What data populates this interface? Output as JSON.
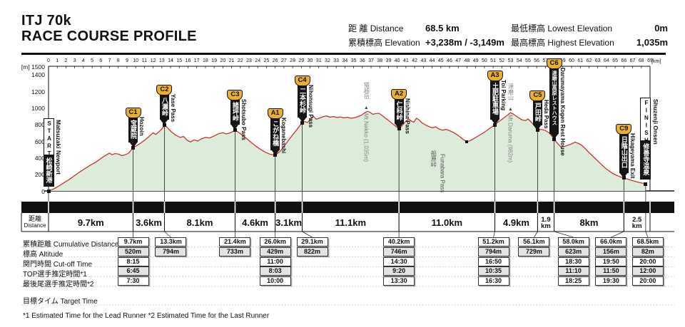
{
  "title": {
    "line1": "ITJ 70k",
    "line2": "RACE COURSE PROFILE"
  },
  "header_stats": [
    {
      "jp": "距 離",
      "en": "Distance",
      "value": "68.5 km"
    },
    {
      "jp": "累積標高",
      "en": "Elevation",
      "value": "+3,238m / -3,149m"
    },
    {
      "jp": "最低標高",
      "en": "Lowest Elevation",
      "value": "0m"
    },
    {
      "jp": "最高標高",
      "en": "Highest Elevation",
      "value": "1,035m"
    }
  ],
  "chart_data": {
    "type": "area",
    "title": "ITJ 70k Race Course Profile",
    "xlabel": "[km]",
    "ylabel": "[m]",
    "xlim": [
      0,
      69
    ],
    "ylim": [
      0,
      1500
    ],
    "y_ticks": [
      0,
      200,
      400,
      600,
      800,
      1000,
      1200,
      1400,
      1500
    ],
    "x_tick_step": 1,
    "grid": false,
    "line_color": "#c2392f",
    "fill_color": "#dcebda",
    "flag_gold": "#e9af2e",
    "profile": [
      [
        0,
        0
      ],
      [
        0.6,
        25
      ],
      [
        1.2,
        60
      ],
      [
        1.8,
        100
      ],
      [
        2.4,
        140
      ],
      [
        3,
        185
      ],
      [
        3.6,
        230
      ],
      [
        4.2,
        270
      ],
      [
        4.8,
        310
      ],
      [
        5.4,
        345
      ],
      [
        6,
        390
      ],
      [
        6.5,
        425
      ],
      [
        7,
        455
      ],
      [
        7.3,
        435
      ],
      [
        7.6,
        450
      ],
      [
        8,
        445
      ],
      [
        8.4,
        425
      ],
      [
        8.8,
        435
      ],
      [
        9.2,
        455
      ],
      [
        9.7,
        520
      ],
      [
        10.2,
        550
      ],
      [
        10.7,
        585
      ],
      [
        11.2,
        625
      ],
      [
        11.7,
        670
      ],
      [
        12,
        700
      ],
      [
        12.3,
        680
      ],
      [
        12.6,
        705
      ],
      [
        13,
        745
      ],
      [
        13.3,
        794
      ],
      [
        13.7,
        755
      ],
      [
        14.1,
        710
      ],
      [
        14.6,
        670
      ],
      [
        15.1,
        645
      ],
      [
        15.5,
        655
      ],
      [
        15.9,
        610
      ],
      [
        16.3,
        590
      ],
      [
        16.7,
        615
      ],
      [
        17.1,
        600
      ],
      [
        17.5,
        625
      ],
      [
        18,
        645
      ],
      [
        18.5,
        638
      ],
      [
        19,
        662
      ],
      [
        19.5,
        688
      ],
      [
        20,
        700
      ],
      [
        20.4,
        686
      ],
      [
        20.9,
        700
      ],
      [
        21.4,
        733
      ],
      [
        21.9,
        697
      ],
      [
        22.4,
        660
      ],
      [
        22.9,
        615
      ],
      [
        23.4,
        570
      ],
      [
        23.9,
        530
      ],
      [
        24.4,
        495
      ],
      [
        24.9,
        465
      ],
      [
        25.4,
        442
      ],
      [
        26,
        429
      ],
      [
        26.5,
        470
      ],
      [
        27,
        535
      ],
      [
        27.5,
        605
      ],
      [
        28,
        675
      ],
      [
        28.5,
        740
      ],
      [
        29.1,
        822
      ],
      [
        29.4,
        833
      ],
      [
        29.7,
        824
      ],
      [
        30.1,
        865
      ],
      [
        30.4,
        898
      ],
      [
        30.7,
        862
      ],
      [
        31.1,
        878
      ],
      [
        31.5,
        893
      ],
      [
        31.9,
        903
      ],
      [
        32.3,
        888
      ],
      [
        32.7,
        894
      ],
      [
        33.1,
        884
      ],
      [
        33.5,
        890
      ],
      [
        33.9,
        879
      ],
      [
        34.3,
        886
      ],
      [
        34.7,
        874
      ],
      [
        35.1,
        882
      ],
      [
        35.5,
        893
      ],
      [
        35.9,
        912
      ],
      [
        36.3,
        942
      ],
      [
        36.6,
        958
      ],
      [
        36.9,
        945
      ],
      [
        37.2,
        922
      ],
      [
        37.5,
        930
      ],
      [
        37.9,
        934
      ],
      [
        38.3,
        905
      ],
      [
        38.7,
        872
      ],
      [
        39.1,
        840
      ],
      [
        39.5,
        806
      ],
      [
        40.2,
        746
      ],
      [
        40.5,
        778
      ],
      [
        40.9,
        830
      ],
      [
        41.3,
        866
      ],
      [
        41.6,
        842
      ],
      [
        41.9,
        826
      ],
      [
        42.2,
        874
      ],
      [
        42.5,
        856
      ],
      [
        42.8,
        822
      ],
      [
        43.2,
        796
      ],
      [
        43.6,
        776
      ],
      [
        44,
        760
      ],
      [
        44.4,
        771
      ],
      [
        44.8,
        746
      ],
      [
        45.2,
        731
      ],
      [
        45.6,
        741
      ],
      [
        46,
        726
      ],
      [
        46.4,
        706
      ],
      [
        46.8,
        681
      ],
      [
        47.2,
        651
      ],
      [
        47.6,
        616
      ],
      [
        48,
        592
      ],
      [
        48.4,
        606
      ],
      [
        48.8,
        631
      ],
      [
        49.2,
        656
      ],
      [
        49.6,
        681
      ],
      [
        50,
        706
      ],
      [
        50.5,
        746
      ],
      [
        51.2,
        794
      ],
      [
        51.6,
        831
      ],
      [
        52,
        861
      ],
      [
        52.4,
        892
      ],
      [
        52.8,
        926
      ],
      [
        53,
        940
      ],
      [
        53.3,
        926
      ],
      [
        53.7,
        896
      ],
      [
        54,
        876
      ],
      [
        54.3,
        856
      ],
      [
        54.7,
        846
      ],
      [
        55,
        866
      ],
      [
        55.3,
        836
      ],
      [
        55.7,
        791
      ],
      [
        56.1,
        729
      ],
      [
        56.4,
        741
      ],
      [
        56.7,
        736
      ],
      [
        57,
        726
      ],
      [
        57.4,
        701
      ],
      [
        57.7,
        666
      ],
      [
        58,
        623
      ],
      [
        58.4,
        571
      ],
      [
        58.8,
        526
      ],
      [
        59.2,
        536
      ],
      [
        59.6,
        551
      ],
      [
        60,
        566
      ],
      [
        60.4,
        586
      ],
      [
        60.8,
        571
      ],
      [
        61.2,
        546
      ],
      [
        61.6,
        506
      ],
      [
        62,
        461
      ],
      [
        62.4,
        421
      ],
      [
        62.8,
        381
      ],
      [
        63.2,
        341
      ],
      [
        63.6,
        301
      ],
      [
        64,
        263
      ],
      [
        64.4,
        233
      ],
      [
        64.8,
        206
      ],
      [
        65.2,
        186
      ],
      [
        65.6,
        169
      ],
      [
        66,
        156
      ],
      [
        66.4,
        143
      ],
      [
        66.8,
        129
      ],
      [
        67.2,
        117
      ],
      [
        67.6,
        106
      ],
      [
        68,
        96
      ],
      [
        68.5,
        82
      ]
    ],
    "checkpoints": [
      {
        "id": "START",
        "type": "sf",
        "km": 0,
        "elev": 0,
        "jp": "松崎新港",
        "en": "Matsuzaki Newport"
      },
      {
        "id": "C1",
        "type": "cp",
        "km": 9.7,
        "elev": 520,
        "jp": "宝蔵院",
        "en": "Hozoin"
      },
      {
        "id": "C2",
        "type": "cp",
        "km": 13.3,
        "elev": 794,
        "jp": "八瀬峠",
        "en": "Yase Pass"
      },
      {
        "id": "C3",
        "type": "cp",
        "km": 21.4,
        "elev": 733,
        "jp": "諸坪峠",
        "en": "Shotsubo Pass"
      },
      {
        "id": "A1",
        "type": "cp",
        "km": 26.0,
        "elev": 429,
        "jp": "こがね橋",
        "en": "Koganebashi"
      },
      {
        "id": "C4",
        "type": "cp",
        "km": 29.1,
        "elev": 822,
        "jp": "二本杉峠",
        "en": "Nihonsugi Pass"
      },
      {
        "id": "A2",
        "type": "cp",
        "km": 40.2,
        "elev": 746,
        "jp": "仁科峠",
        "en": "Nishina Pass"
      },
      {
        "id": "A3",
        "type": "cp",
        "km": 51.2,
        "elev": 794,
        "jp": "土肥駐車場",
        "en": "Toi Parking"
      },
      {
        "id": "C5",
        "type": "cp",
        "km": 56.1,
        "elev": 729,
        "jp": "戸田峠",
        "en": "Heda Pass"
      },
      {
        "id": "C6",
        "type": "cp",
        "km": 58.0,
        "elev": 623,
        "jp": "達磨山高原レストハウス",
        "en": "Darumayama Kogen Rest House"
      },
      {
        "id": "C9",
        "type": "cp",
        "km": 66.0,
        "elev": 156,
        "jp": "日陰山出口",
        "en": "Hikageyama Exit"
      },
      {
        "id": "FINISH",
        "type": "sf",
        "km": 68.5,
        "elev": 82,
        "jp": "修善寺温泉",
        "en": "Shuzenji Onsen"
      }
    ],
    "peaks": [
      {
        "jp": "猫越岳",
        "en": "Mt.Nekko (1,035m)",
        "km": 36.45,
        "elev": 958,
        "marker": "▲",
        "pos": "above"
      },
      {
        "jp": "船原峠",
        "en": "Funabara Pass",
        "km": 48.0,
        "elev": 592,
        "marker": "■",
        "pos": "below-left"
      },
      {
        "jp": "達磨山",
        "en": "Mt.Daruma (982m)",
        "km": 53.0,
        "elev": 940,
        "marker": "▲",
        "pos": "above"
      }
    ]
  },
  "distance_band": {
    "label_jp": "距離",
    "label_en": "Distance",
    "boundaries_km": [
      0,
      9.7,
      13.3,
      21.4,
      26.0,
      29.1,
      40.2,
      51.2,
      56.1,
      58.0,
      66.0,
      69
    ],
    "segments": [
      {
        "label": "9.7km"
      },
      {
        "label": "3.6km"
      },
      {
        "label": "8.1km"
      },
      {
        "label": "4.6km"
      },
      {
        "label": "3.1km"
      },
      {
        "label": "11.1km"
      },
      {
        "label": "11.0km"
      },
      {
        "label": "4.9km"
      },
      {
        "label": "1.9km",
        "stacked": true
      },
      {
        "label": "8km"
      },
      {
        "label": "2.5km",
        "stacked": true
      }
    ]
  },
  "table": {
    "row_labels": [
      "累積距離  Cumulative Distance",
      "標高  Altitude",
      "関門時間 Cut-off Time",
      "TOP選手推定時間*1",
      "最後尾選手推定時間*2"
    ],
    "columns": [
      {
        "km": "9.7km",
        "alt": "520m",
        "cutoff": "8:15",
        "top": "6:45",
        "last": "7:30"
      },
      {
        "km": "13.3km",
        "alt": "794m"
      },
      {
        "km": "21.4km",
        "alt": "733m"
      },
      {
        "km": "26.0km",
        "alt": "429m",
        "cutoff": "11:00",
        "top": "8:03",
        "last": "10:00"
      },
      {
        "km": "29.1km",
        "alt": "822m"
      },
      {
        "km": "40.2km",
        "alt": "746m",
        "cutoff": "14:30",
        "top": "9:20",
        "last": "13:30"
      },
      {
        "km": "51.2km",
        "alt": "794m",
        "cutoff": "16:50",
        "top": "10:35",
        "last": "16:30"
      },
      {
        "km": "56.1km",
        "alt": "729m"
      },
      {
        "km": "58.0km",
        "alt": "623m",
        "cutoff": "18:30",
        "top": "11:10",
        "last": "18:25"
      },
      {
        "km": "66.0km",
        "alt": "156m",
        "cutoff": "19:50",
        "top": "11:50",
        "last": "19:30"
      },
      {
        "km": "68.5km",
        "alt": "82m",
        "cutoff": "20:00",
        "top": "12:00",
        "last": "20:00"
      }
    ]
  },
  "notes": {
    "target_time": "目標タイム Target Time",
    "footnote": "*1 Estimated Time for the Lead Runner  *2 Estimated Time for the Last Runner"
  }
}
